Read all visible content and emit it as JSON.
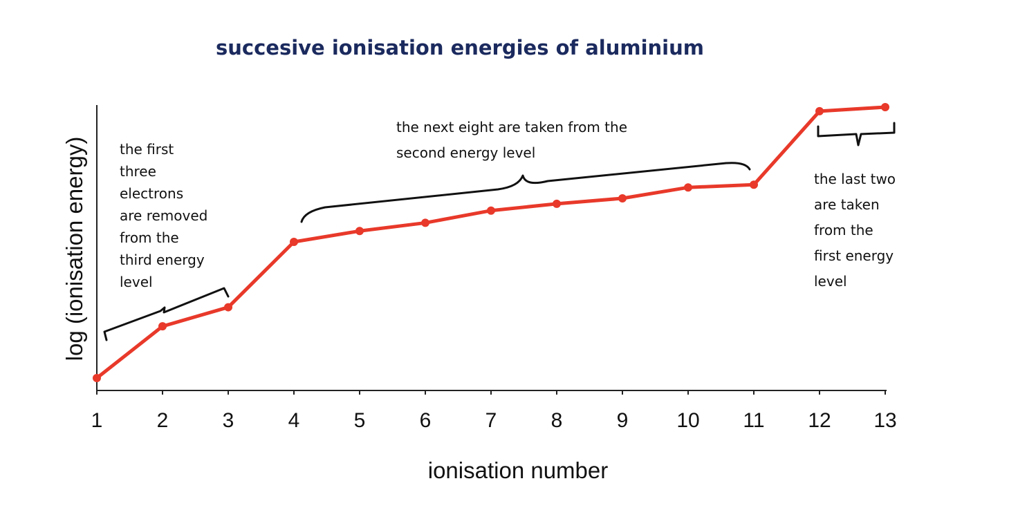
{
  "chart_data": {
    "type": "line",
    "title": "succesive ionisation energies of aluminium",
    "xlabel": "ionisation number",
    "ylabel": "log (ionisation energy)",
    "x": [
      1,
      2,
      3,
      4,
      5,
      6,
      7,
      8,
      9,
      10,
      11,
      12,
      13
    ],
    "series": [
      {
        "values": [
          0.0,
          19.0,
          26.0,
          50.0,
          54.0,
          57.0,
          61.5,
          64.0,
          66.0,
          70.0,
          71.0,
          98.0,
          99.5
        ]
      }
    ],
    "xlim": [
      1,
      13
    ],
    "ylim": [
      -3,
      103
    ],
    "line_color": "#e8392a",
    "grid": false,
    "annotations": [
      {
        "id": "third",
        "lines": [
          "the first",
          "three",
          "electrons",
          "are removed",
          "from the",
          "third energy",
          "level"
        ]
      },
      {
        "id": "second",
        "lines": [
          "the next eight are taken from the",
          "second energy level"
        ]
      },
      {
        "id": "first",
        "lines": [
          "the last two",
          "are taken",
          "from the",
          "first energy",
          "level"
        ]
      }
    ]
  }
}
